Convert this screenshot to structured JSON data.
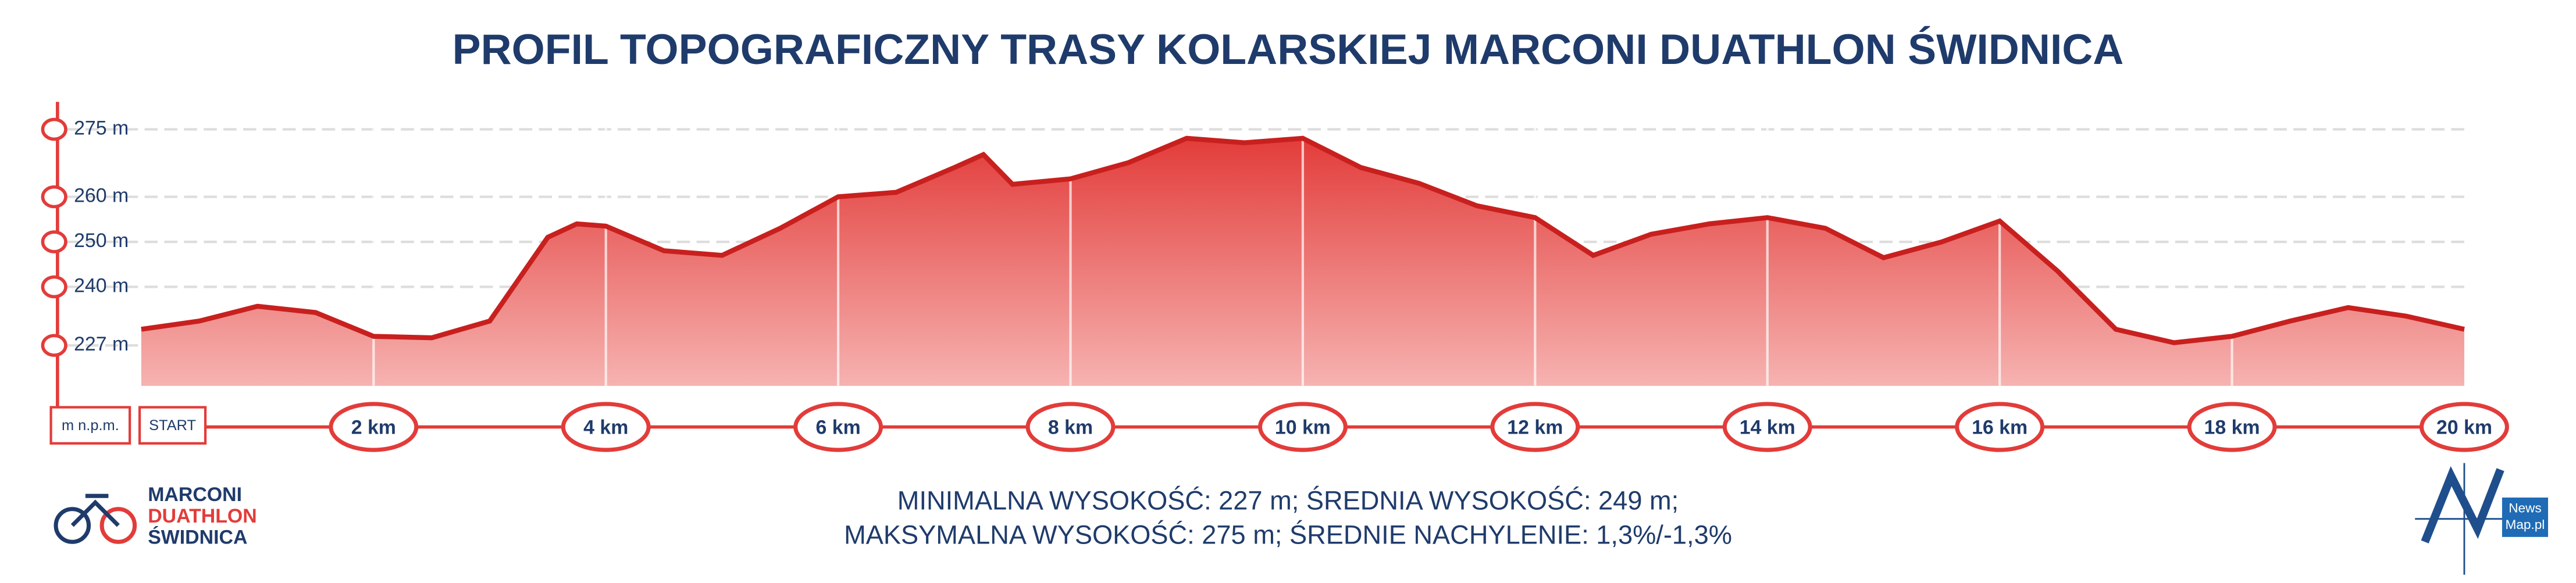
{
  "chart_data": {
    "type": "area",
    "title": "PROFIL TOPOGRAFICZNY TRASY KOLARSKIEJ MARCONI DUATHLON ŚWIDNICA",
    "y_unit_label": "m n.p.m.",
    "start_label": "START",
    "color": "#e23c3a",
    "x": [
      0,
      0.5,
      1,
      1.5,
      2,
      2.5,
      3,
      3.5,
      3.75,
      4,
      4.5,
      5,
      5.5,
      6,
      6.5,
      7,
      7.25,
      7.5,
      8,
      8.5,
      9,
      9.5,
      10,
      10.5,
      11,
      11.5,
      12,
      12.5,
      13,
      13.5,
      14,
      14.5,
      15,
      15.5,
      16,
      16.5,
      17,
      17.5,
      18,
      18.5,
      19,
      19.5,
      20
    ],
    "values": [
      230.6,
      232.4,
      235.7,
      234.3,
      229,
      228.7,
      232.4,
      251,
      254,
      253.5,
      248,
      247,
      253,
      260,
      261,
      266.5,
      269.4,
      262.8,
      264,
      267.6,
      273,
      272,
      273,
      266.5,
      263,
      258,
      255.4,
      247,
      251.7,
      254,
      255.4,
      253,
      246.5,
      250,
      254.6,
      243.5,
      230.6,
      227.6,
      229,
      232.4,
      235.4,
      233.5,
      230.6
    ],
    "xlim": [
      0,
      20
    ],
    "xticks": [
      {
        "value": 2,
        "label": "2 km"
      },
      {
        "value": 4,
        "label": "4 km"
      },
      {
        "value": 6,
        "label": "6 km"
      },
      {
        "value": 8,
        "label": "8 km"
      },
      {
        "value": 10,
        "label": "10 km"
      },
      {
        "value": 12,
        "label": "12 km"
      },
      {
        "value": 14,
        "label": "14 km"
      },
      {
        "value": 16,
        "label": "16 km"
      },
      {
        "value": 18,
        "label": "18 km"
      },
      {
        "value": 20,
        "label": "20 km"
      }
    ],
    "ylim": [
      218,
      280
    ],
    "yticks": [
      {
        "value": 227,
        "label": "227 m"
      },
      {
        "value": 240,
        "label": "240 m"
      },
      {
        "value": 250,
        "label": "250 m"
      },
      {
        "value": 260,
        "label": "260 m"
      },
      {
        "value": 275,
        "label": "275 m"
      }
    ],
    "grid": true,
    "annotations": [
      "MINIMALNA WYSOKOŚĆ: 227 m; ŚREDNIA WYSOKOŚĆ: 249 m;",
      "MAKSYMALNA WYSOKOŚĆ: 275 m; ŚREDNIE NACHYLENIE: 1,3%/-1,3%"
    ]
  },
  "logos": {
    "event": [
      "MARCONI",
      "DUATHLON",
      "ŚWIDNICA"
    ],
    "publisher": [
      "News",
      "Map.pl"
    ]
  }
}
